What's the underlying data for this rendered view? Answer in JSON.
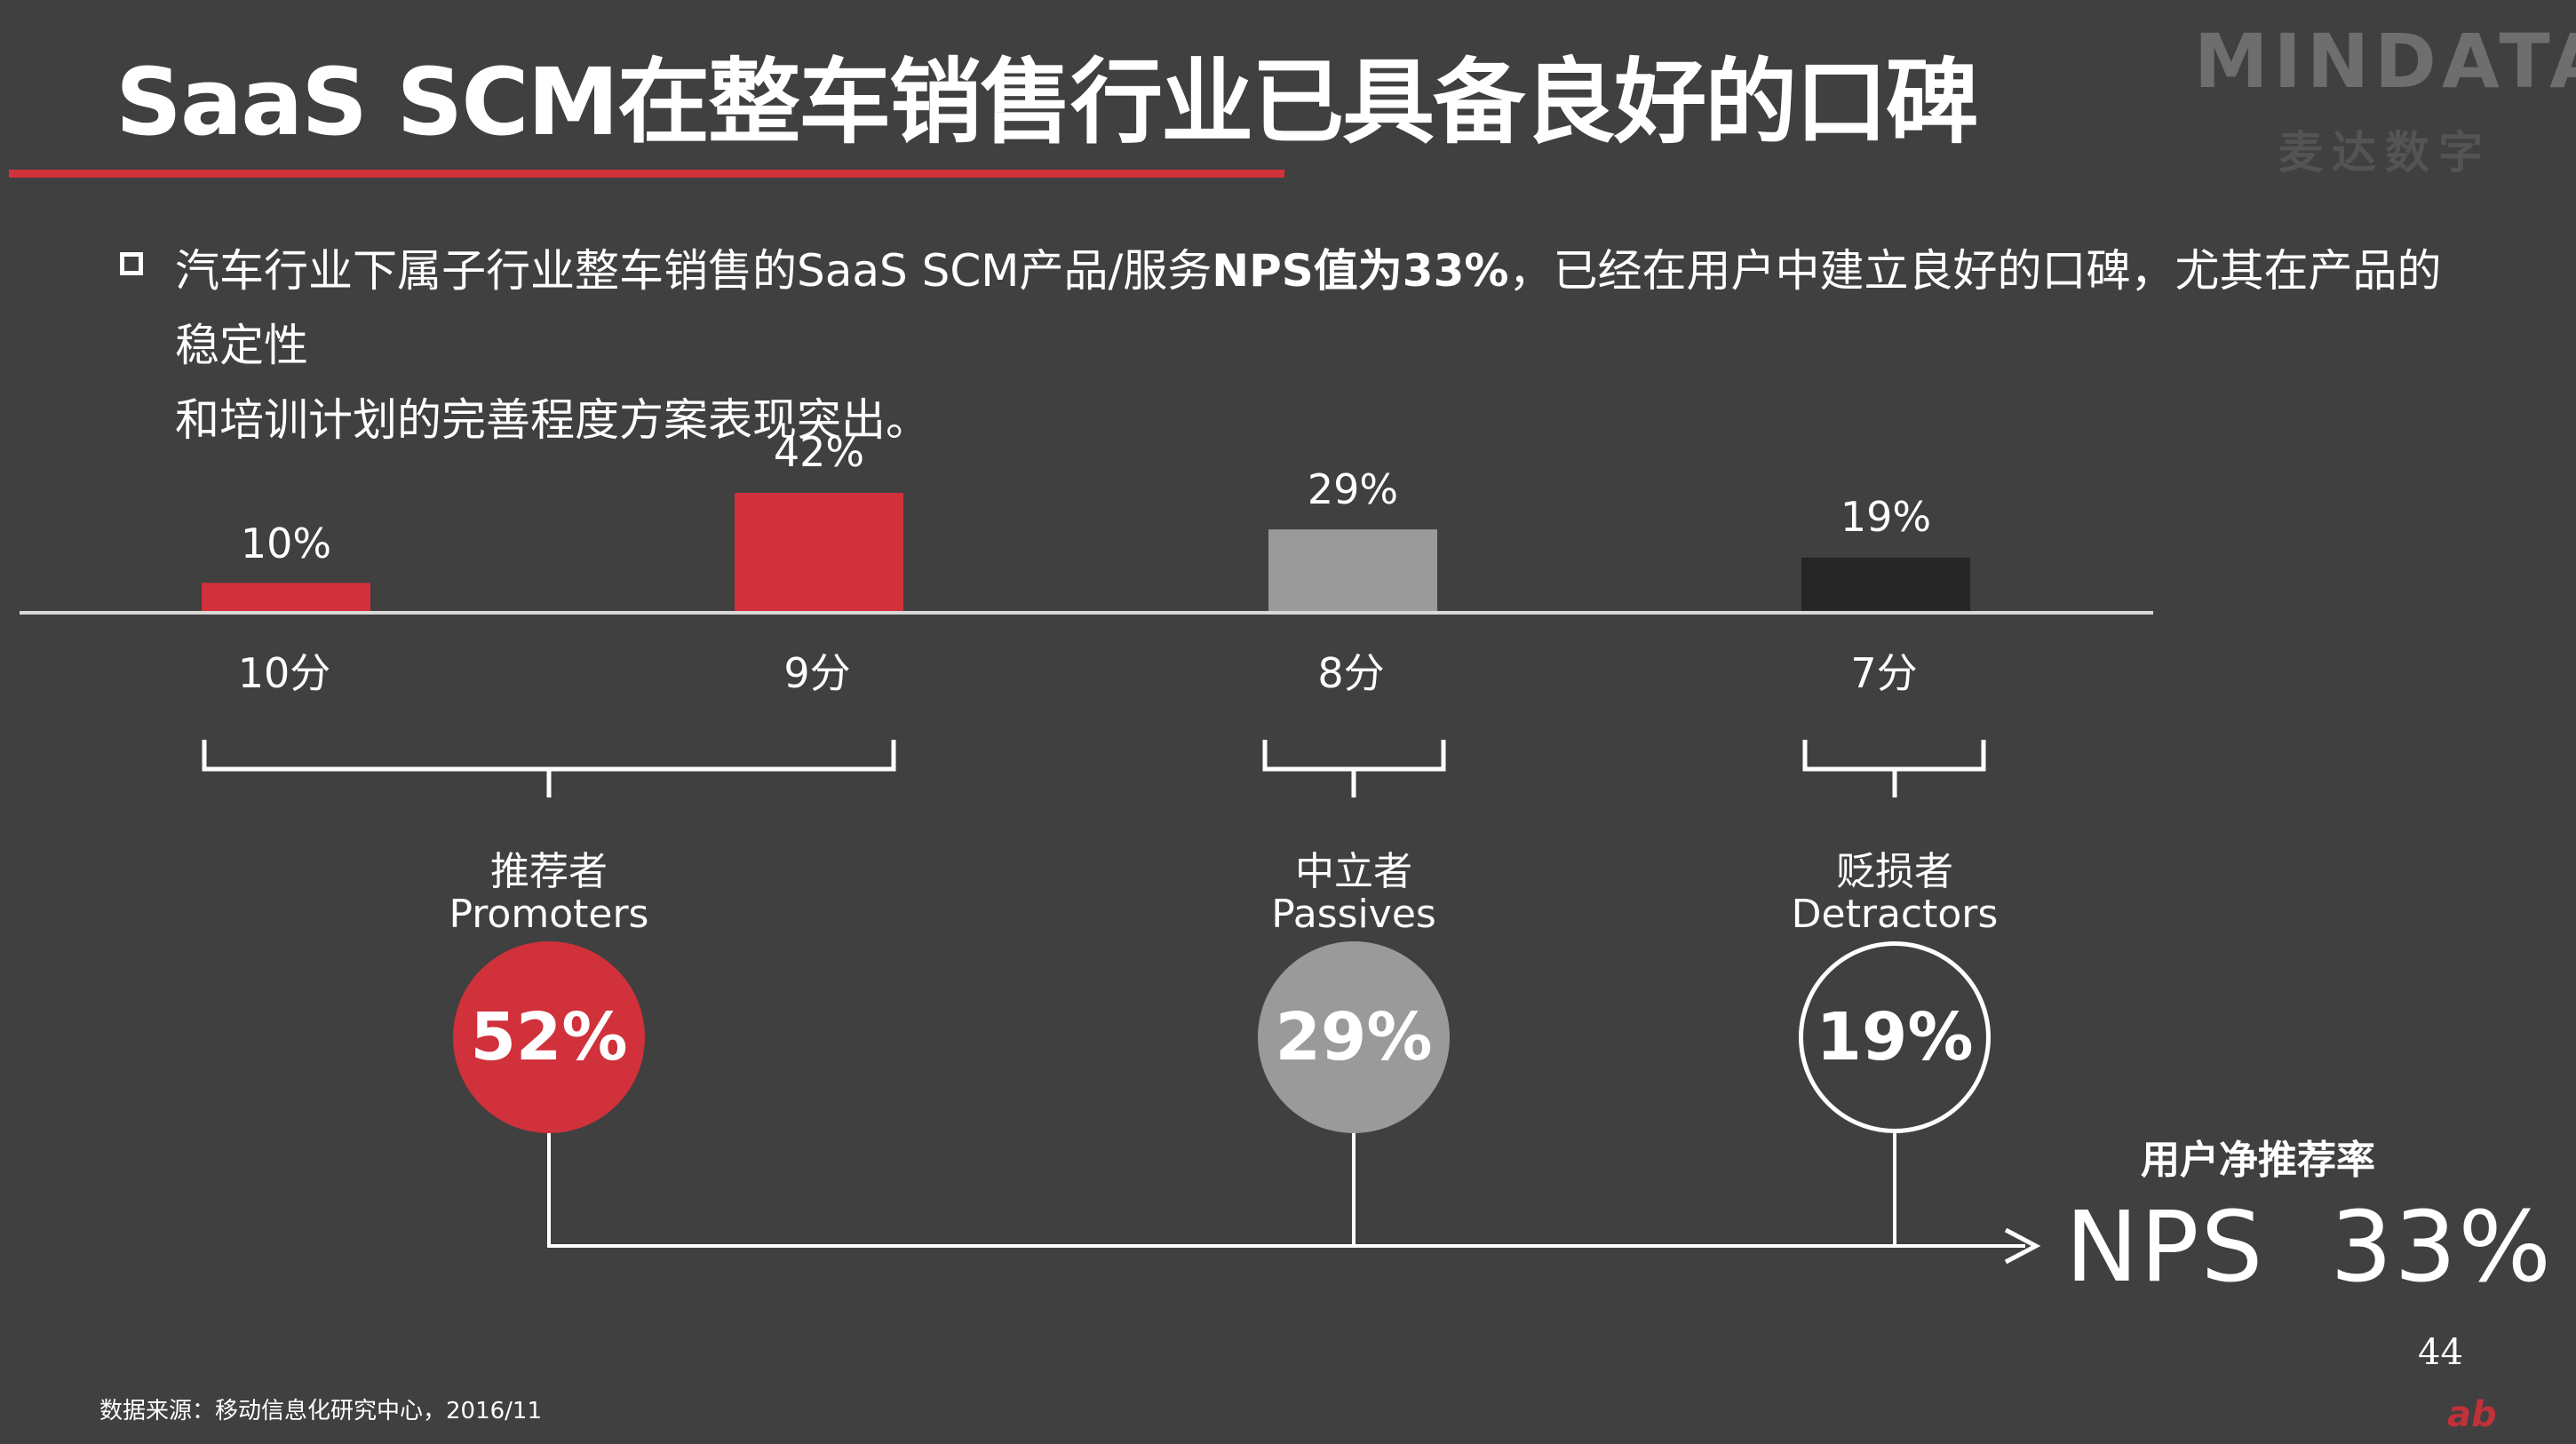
{
  "title": "SaaS SCM在整车销售行业已具备良好的口碑",
  "logo": {
    "main": "MINDATA",
    "sub": "麦达数字"
  },
  "bullet": {
    "text_1": "汽车行业下属子行业整车销售的SaaS SCM产品/服务",
    "text_bold": "NPS值为33%",
    "text_2": "，已经在用户中建立良好的口碑，尤其在产品的稳定性",
    "text_3": "和培训计划的完善程度方案表现突出。"
  },
  "chart_data": {
    "type": "bar",
    "categories": [
      "10分",
      "9分",
      "8分",
      "7分"
    ],
    "values": [
      10,
      42,
      29,
      19
    ],
    "value_labels": [
      "10%",
      "42%",
      "29%",
      "19%"
    ],
    "bar_colors": [
      "#d0313a",
      "#d0313a",
      "#9a9a9a",
      "#262626"
    ],
    "ylim": [
      0,
      42
    ]
  },
  "groups": [
    {
      "cn": "推荐者",
      "en": "Promoters",
      "value": "52%",
      "style": "red"
    },
    {
      "cn": "中立者",
      "en": "Passives",
      "value": "29%",
      "style": "gray"
    },
    {
      "cn": "贬损者",
      "en": "Detractors",
      "value": "19%",
      "style": "outline"
    }
  ],
  "nps": {
    "label_cn": "用户净推荐率",
    "label": "NPS",
    "value": "33%"
  },
  "page_number": "44",
  "source": "数据来源：移动信息化研究中心，2016/11",
  "colors": {
    "accent": "#d0313a",
    "background": "#404040",
    "gray": "#9a9a9a",
    "dark": "#262626"
  }
}
